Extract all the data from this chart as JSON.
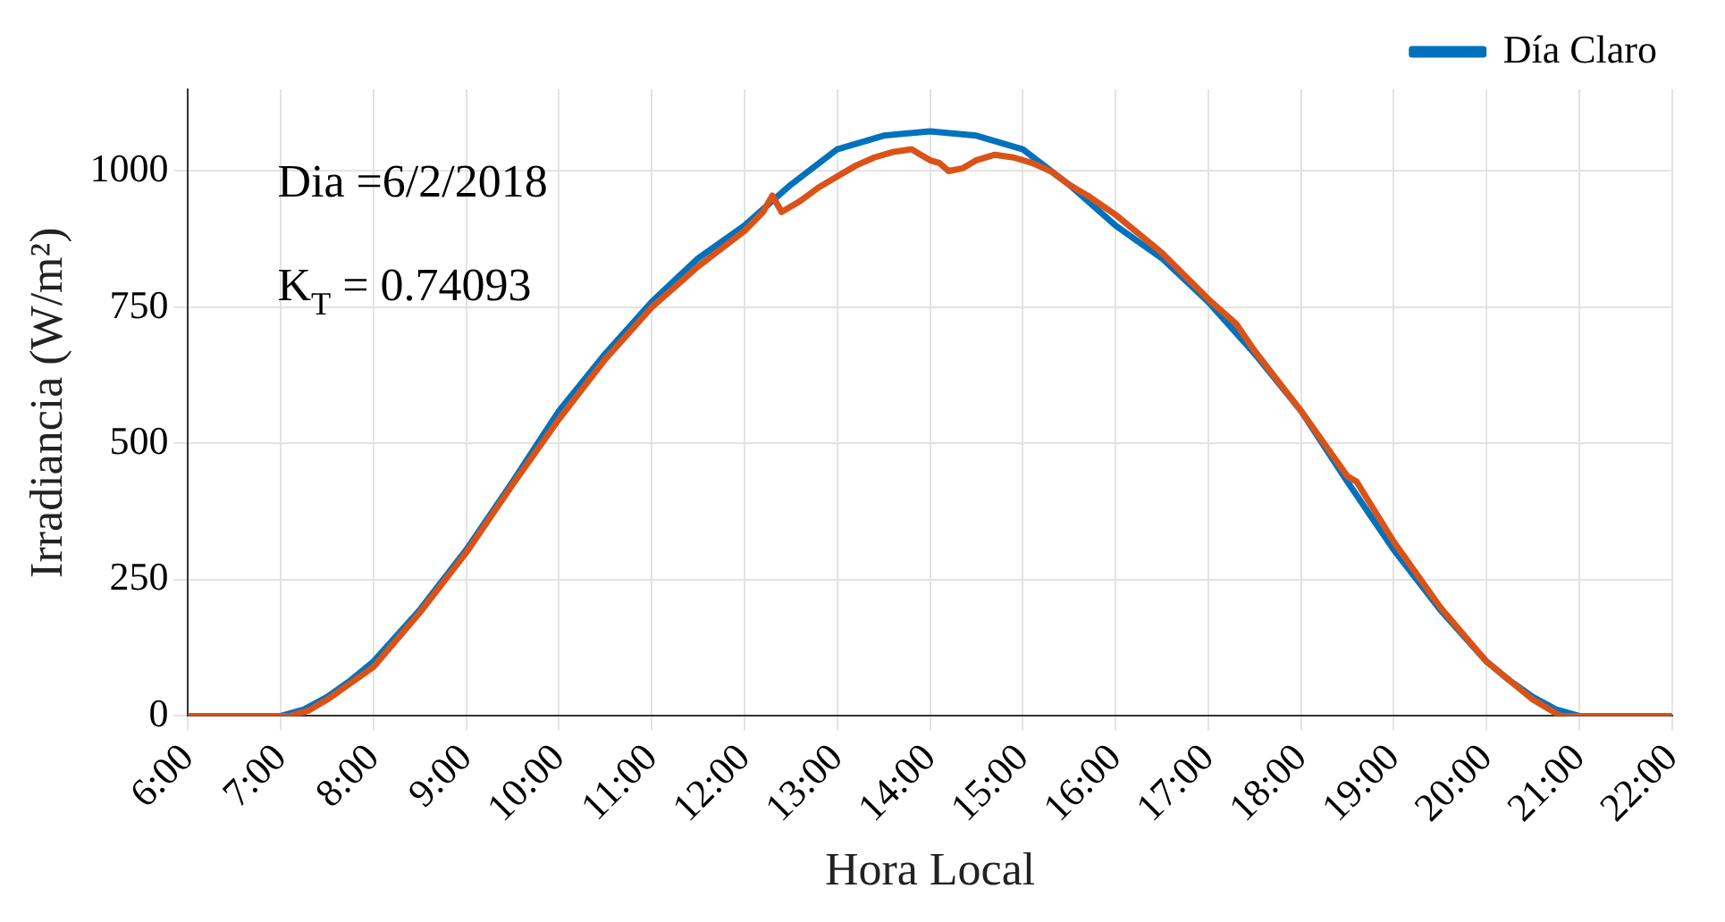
{
  "chart_data": {
    "type": "line",
    "xlabel": "Hora Local",
    "ylabel": "Irradiancia (W/m²)",
    "annotations": [
      "Dia =6/2/2018",
      "K$_{T}$ = 0.74093"
    ],
    "xlim": [
      6,
      22
    ],
    "xticks": [
      {
        "value": 6,
        "label": "6:00"
      },
      {
        "value": 7,
        "label": "7:00"
      },
      {
        "value": 8,
        "label": "8:00"
      },
      {
        "value": 9,
        "label": "9:00"
      },
      {
        "value": 10,
        "label": "10:00"
      },
      {
        "value": 11,
        "label": "11:00"
      },
      {
        "value": 12,
        "label": "12:00"
      },
      {
        "value": 13,
        "label": "13:00"
      },
      {
        "value": 14,
        "label": "14:00"
      },
      {
        "value": 15,
        "label": "15:00"
      },
      {
        "value": 16,
        "label": "16:00"
      },
      {
        "value": 17,
        "label": "17:00"
      },
      {
        "value": 18,
        "label": "18:00"
      },
      {
        "value": 19,
        "label": "19:00"
      },
      {
        "value": 20,
        "label": "20:00"
      },
      {
        "value": 21,
        "label": "21:00"
      },
      {
        "value": 22,
        "label": "22:00"
      }
    ],
    "ylim": [
      0,
      1150
    ],
    "yticks": [
      0,
      250,
      500,
      750,
      1000
    ],
    "grid": true,
    "legend": "top right",
    "marker": "none",
    "line_style": "solid",
    "series": [
      {
        "name": "Día Claro",
        "color": "#0072bd",
        "x": [
          6,
          7,
          7.25,
          7.5,
          7.75,
          8,
          8.5,
          9,
          9.5,
          10,
          10.5,
          11,
          11.5,
          12,
          12.5,
          13,
          13.5,
          14,
          14.5,
          15,
          15.5,
          16,
          16.5,
          17,
          17.5,
          18,
          18.5,
          19,
          19.5,
          20,
          20.25,
          20.5,
          20.75,
          21,
          22
        ],
        "values": [
          0,
          0,
          12,
          35,
          65,
          100,
          195,
          305,
          430,
          560,
          665,
          760,
          840,
          900,
          975,
          1040,
          1065,
          1073,
          1065,
          1040,
          975,
          900,
          840,
          760,
          665,
          560,
          430,
          305,
          195,
          100,
          65,
          35,
          12,
          0,
          0
        ]
      },
      {
        "color": "#d95319",
        "x": [
          6,
          7.1,
          7.3,
          7.5,
          8,
          8.5,
          9,
          9.5,
          10,
          10.5,
          11,
          11.5,
          12,
          12.2,
          12.3,
          12.4,
          12.6,
          12.8,
          13,
          13.2,
          13.4,
          13.6,
          13.8,
          13.9,
          14,
          14.1,
          14.2,
          14.35,
          14.5,
          14.7,
          14.9,
          15.1,
          15.3,
          15.5,
          15.7,
          16,
          16.5,
          17,
          17.3,
          17.5,
          18,
          18.5,
          18.6,
          19,
          19.5,
          20,
          20.5,
          20.8,
          22
        ],
        "values": [
          0,
          0,
          10,
          30,
          90,
          190,
          300,
          425,
          545,
          655,
          750,
          825,
          890,
          925,
          955,
          925,
          945,
          970,
          990,
          1010,
          1025,
          1035,
          1040,
          1030,
          1020,
          1015,
          1000,
          1005,
          1020,
          1030,
          1025,
          1015,
          1000,
          975,
          955,
          920,
          850,
          765,
          720,
          670,
          560,
          440,
          430,
          320,
          200,
          100,
          30,
          0,
          0
        ]
      }
    ]
  }
}
